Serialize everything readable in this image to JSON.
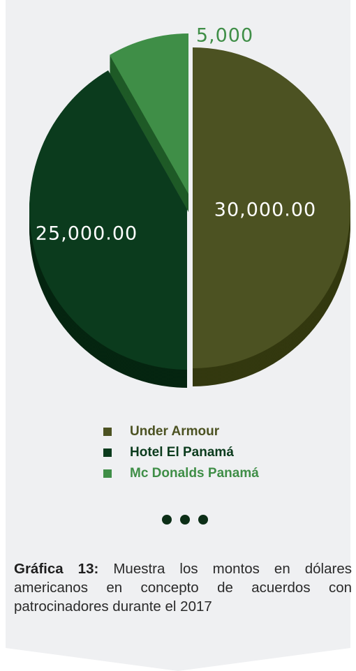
{
  "chart_data": {
    "type": "pie",
    "slices": [
      {
        "label": "Under Armour",
        "value": 30000,
        "data_label": "30,000.00",
        "color": "#4c5222",
        "side_color": "#33380f",
        "legend_color": "#4c5222"
      },
      {
        "label": "Hotel El Panamá",
        "value": 25000,
        "data_label": "25,000.00",
        "color": "#0b3b1d",
        "side_color": "#052510",
        "legend_color": "#0b3b1d"
      },
      {
        "label": "Mc Donalds Panamá",
        "value": 5000,
        "data_label": "5,000",
        "color": "#3f8e47",
        "side_color": "#1f5a27",
        "legend_color": "#3f8e47"
      }
    ],
    "legend_position": "bottom"
  },
  "caption": {
    "label": "Gráfica 13:",
    "text": " Muestra los montos en dólares americanos en concepto de acuerdos con patrocinadores durante el 2017"
  },
  "colors": {
    "background": "#eff0f2",
    "data_label_light": "#ffffff",
    "dots": "#0c2e17"
  }
}
